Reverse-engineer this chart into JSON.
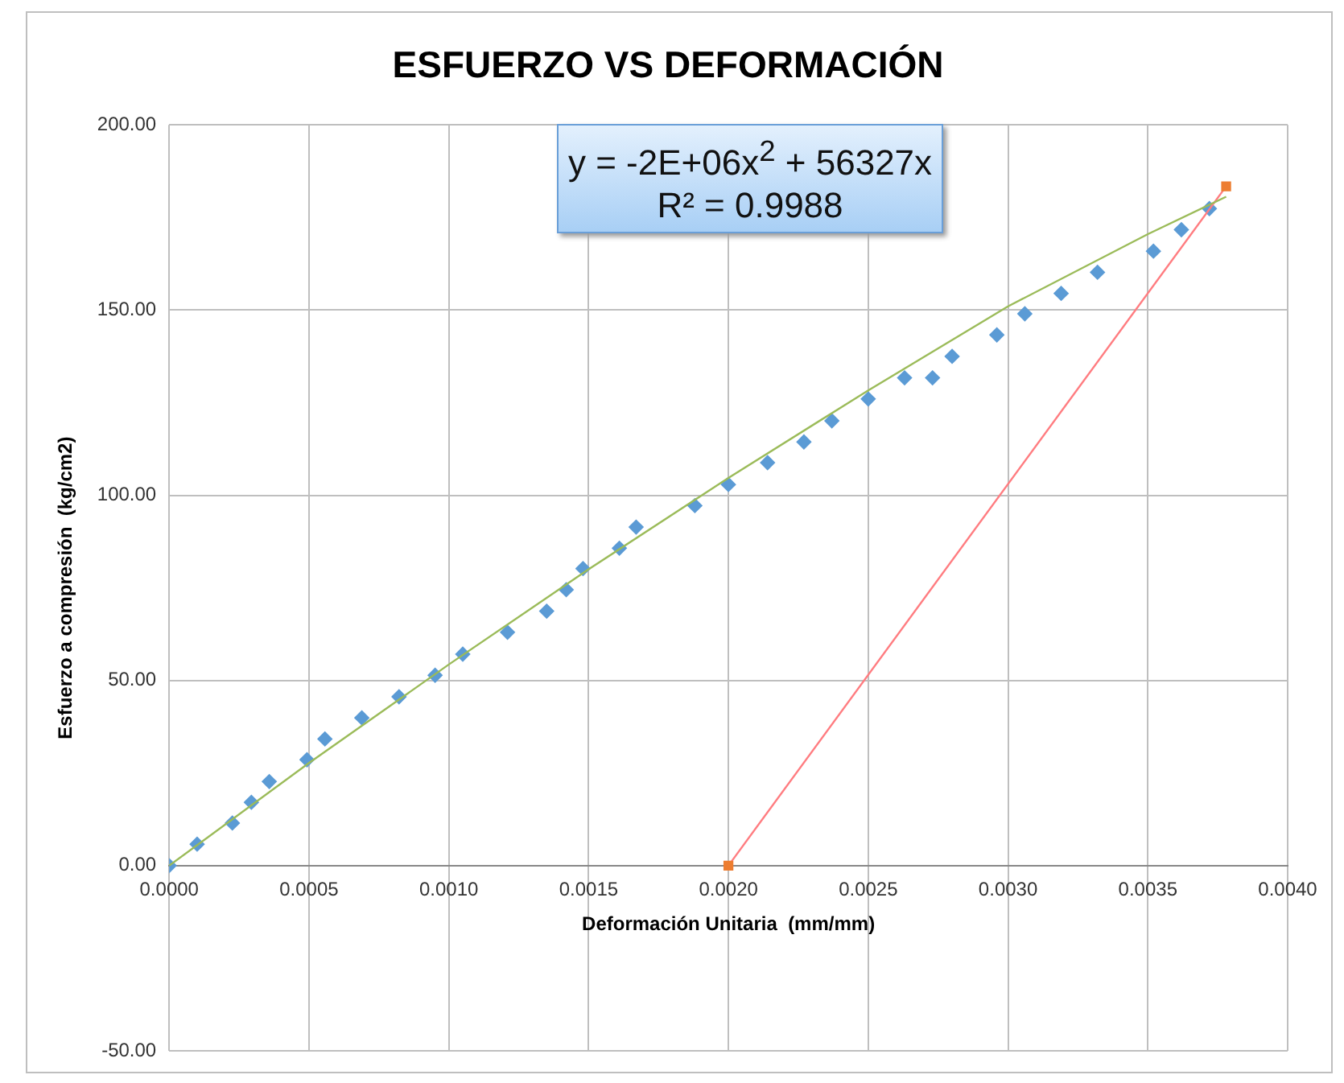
{
  "chart_data": {
    "type": "scatter",
    "title": "ESFUERZO VS DEFORMACIÓN",
    "xlabel": "Deformación Unitaria  (mm/mm)",
    "ylabel": "Esfuerzo a compresión  (kg/cm2)",
    "annotations": [
      "y = -2E+06x$^{2}$ + 56327x",
      "R² = 0.9988"
    ],
    "xlim": [
      0,
      0.004
    ],
    "ylim": [
      -50,
      200
    ],
    "xticks": [
      {
        "value": 0,
        "label": "0.0000"
      },
      {
        "value": 0.0005,
        "label": "0.0005"
      },
      {
        "value": 0.001,
        "label": "0.0010"
      },
      {
        "value": 0.0015,
        "label": "0.0015"
      },
      {
        "value": 0.002,
        "label": "0.0020"
      },
      {
        "value": 0.0025,
        "label": "0.0025"
      },
      {
        "value": 0.003,
        "label": "0.0030"
      },
      {
        "value": 0.0035,
        "label": "0.0035"
      },
      {
        "value": 0.004,
        "label": "0.0040"
      }
    ],
    "yticks": [
      {
        "value": -50,
        "label": "-50.00"
      },
      {
        "value": 0,
        "label": "0.00"
      },
      {
        "value": 50,
        "label": "50.00"
      },
      {
        "value": 100,
        "label": "100.00"
      },
      {
        "value": 150,
        "label": "150.00"
      },
      {
        "value": 200,
        "label": "200.00"
      }
    ],
    "grid": true,
    "legend": false,
    "series": [
      {
        "type": "line",
        "color": "#9bbb59",
        "marker": "none",
        "line_style": "solid",
        "x": [
          0,
          0.0005,
          0.001,
          0.0015,
          0.002,
          0.0025,
          0.003,
          0.0035,
          0.00378
        ],
        "values": [
          0,
          27.7,
          54.3,
          80,
          104.7,
          128.3,
          151,
          170.5,
          180.6
        ]
      },
      {
        "type": "line",
        "color": "#ff7c80",
        "marker": "square",
        "colors": [
          "#ed7d31",
          "#ed7d31"
        ],
        "line_style": "solid",
        "x": [
          0.002,
          0.00378
        ],
        "values": [
          0,
          183.4
        ]
      },
      {
        "type": "scatter",
        "color": "#5b9bd5",
        "marker": "diamond",
        "x": [
          0,
          0.0001,
          0.000226,
          0.000294,
          0.000358,
          0.000493,
          0.000557,
          0.000689,
          0.000822,
          0.000951,
          0.00105,
          0.00121,
          0.00135,
          0.00142,
          0.00148,
          0.00161,
          0.00167,
          0.00188,
          0.002,
          0.00214,
          0.00227,
          0.00237,
          0.0025,
          0.00263,
          0.00273,
          0.0028,
          0.00296,
          0.00306,
          0.00319,
          0.00332,
          0.00352,
          0.00362,
          0.00372
        ],
        "values": [
          0,
          5.8,
          11.5,
          17.1,
          22.7,
          28.6,
          34.2,
          39.9,
          45.6,
          51.4,
          57.1,
          63,
          68.7,
          74.5,
          80.2,
          85.7,
          91.4,
          97.2,
          102.9,
          108.8,
          114.4,
          120.1,
          126,
          131.7,
          131.7,
          137.5,
          143.3,
          149,
          154.5,
          160.2,
          165.9,
          171.7,
          177.4
        ]
      }
    ]
  }
}
